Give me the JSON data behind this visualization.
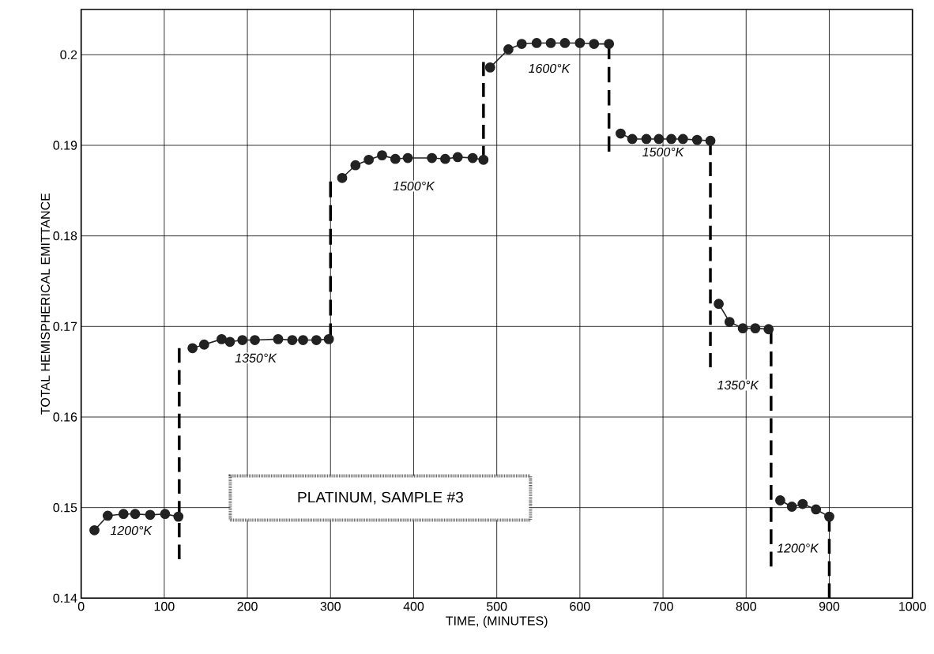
{
  "chart_data": {
    "type": "line",
    "xlabel": "TIME, (MINUTES)",
    "ylabel": "TOTAL HEMISPHERICAL EMITTANCE",
    "xlim": [
      0,
      1000
    ],
    "ylim": [
      0.14,
      0.205
    ],
    "xticks": [
      0,
      100,
      200,
      300,
      400,
      500,
      600,
      700,
      800,
      900,
      1000
    ],
    "yticks": [
      0.14,
      0.15,
      0.16,
      0.17,
      0.18,
      0.19,
      0.2
    ],
    "grid": true,
    "marker": "circle",
    "series": [
      {
        "color": "#222222",
        "x": [
          16,
          32,
          51,
          65,
          83,
          101,
          117
        ],
        "values": [
          0.1475,
          0.1491,
          0.1493,
          0.1493,
          0.1492,
          0.1493,
          0.149
        ]
      },
      {
        "color": "#222222",
        "x": [
          134,
          148,
          169,
          179,
          194,
          209,
          237,
          254,
          267,
          283,
          298
        ],
        "values": [
          0.1676,
          0.168,
          0.1686,
          0.1683,
          0.1685,
          0.1685,
          0.1686,
          0.1685,
          0.1685,
          0.1685,
          0.1686
        ]
      },
      {
        "color": "#222222",
        "x": [
          314,
          330,
          346,
          362,
          378,
          393,
          422,
          438,
          453,
          471,
          484
        ],
        "values": [
          0.1864,
          0.1878,
          0.1884,
          0.1889,
          0.1885,
          0.1886,
          0.1886,
          0.1885,
          0.1887,
          0.1886,
          0.1884
        ]
      },
      {
        "color": "#222222",
        "x": [
          492,
          514,
          530,
          548,
          565,
          582,
          600,
          617,
          635
        ],
        "values": [
          0.1986,
          0.2006,
          0.2012,
          0.2013,
          0.2013,
          0.2013,
          0.2013,
          0.2012,
          0.2012
        ]
      },
      {
        "color": "#222222",
        "x": [
          649,
          663,
          680,
          695,
          710,
          724,
          741,
          757
        ],
        "values": [
          0.1913,
          0.1907,
          0.1907,
          0.1907,
          0.1907,
          0.1907,
          0.1906,
          0.1905
        ]
      },
      {
        "color": "#222222",
        "x": [
          767,
          780,
          796,
          811,
          827
        ],
        "values": [
          0.1725,
          0.1705,
          0.1698,
          0.1698,
          0.1697
        ]
      },
      {
        "color": "#222222",
        "x": [
          841,
          855,
          868,
          884,
          900
        ],
        "values": [
          0.1508,
          0.1501,
          0.1504,
          0.1498,
          0.149
        ]
      },
      {
        "color": "#000000",
        "marker": "none",
        "line_style": "dashed",
        "x": [
          118,
          118
        ],
        "values": [
          0.1443,
          0.1676
        ]
      },
      {
        "color": "#000000",
        "marker": "none",
        "line_style": "dashed",
        "x": [
          300,
          300
        ],
        "values": [
          0.1686,
          0.186
        ]
      },
      {
        "color": "#000000",
        "marker": "none",
        "line_style": "dashed",
        "x": [
          484,
          484
        ],
        "values": [
          0.1884,
          0.1992
        ]
      },
      {
        "color": "#000000",
        "marker": "none",
        "line_style": "dashed",
        "x": [
          635,
          635
        ],
        "values": [
          0.2012,
          0.1893
        ]
      },
      {
        "color": "#000000",
        "marker": "none",
        "line_style": "dashed",
        "x": [
          757,
          757
        ],
        "values": [
          0.1905,
          0.1655
        ]
      },
      {
        "color": "#000000",
        "marker": "none",
        "line_style": "dashed",
        "x": [
          830,
          830
        ],
        "values": [
          0.1697,
          0.1435
        ]
      },
      {
        "color": "#000000",
        "marker": "none",
        "line_style": "dashed",
        "x": [
          900,
          900
        ],
        "values": [
          0.149,
          0.14
        ]
      }
    ],
    "annotations": [
      "1200°K",
      "1350°K",
      "1500°K",
      "1600°K",
      "1500°K",
      "1350°K",
      "1200°K",
      "PLATINUM, SAMPLE #3"
    ]
  }
}
